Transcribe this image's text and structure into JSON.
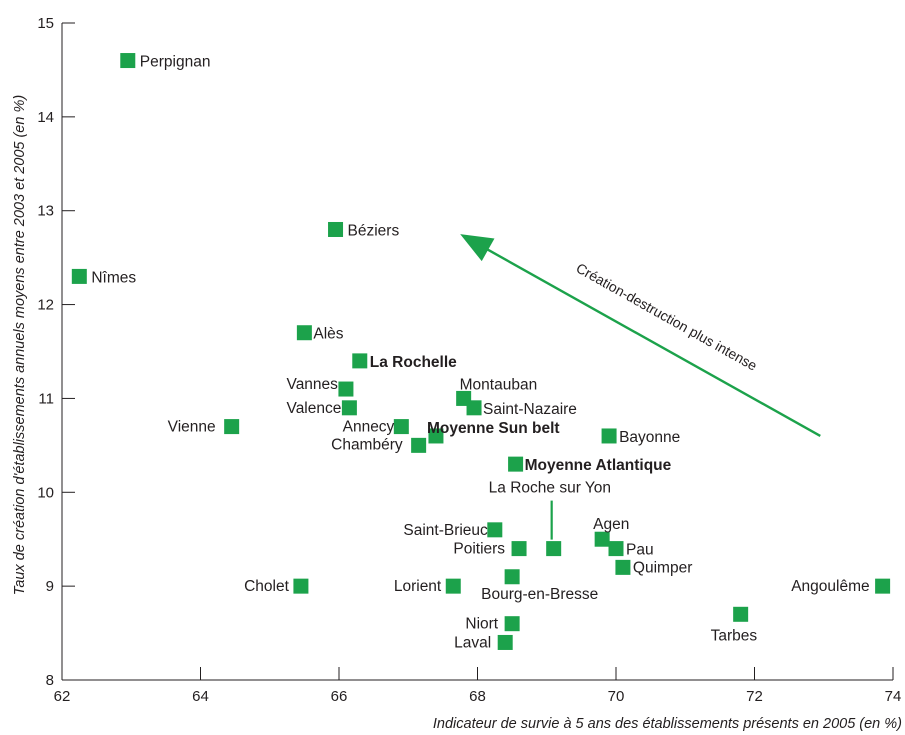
{
  "chart_data": {
    "type": "scatter",
    "xlabel": "Indicateur de survie à 5 ans des établissements présents en 2005 (en %)",
    "ylabel": "Taux de création d'établissements  annuels moyens entre 2003 et 2005 (en %)",
    "xlim": [
      62,
      74
    ],
    "ylim": [
      8,
      15
    ],
    "xticks": [
      "62",
      "64",
      "66",
      "68",
      "70",
      "72",
      "74"
    ],
    "yticks": [
      "8",
      "9",
      "10",
      "11",
      "12",
      "13",
      "14",
      "15"
    ],
    "grid": false,
    "marker_color": "#1ca24b",
    "points": [
      {
        "label": "Perpignan",
        "x": 62.95,
        "y": 14.6,
        "bold": false
      },
      {
        "label": "Béziers",
        "x": 65.95,
        "y": 12.8,
        "bold": false
      },
      {
        "label": "Nîmes",
        "x": 62.25,
        "y": 12.3,
        "bold": false
      },
      {
        "label": "Alès",
        "x": 65.5,
        "y": 11.7,
        "bold": false
      },
      {
        "label": "La Rochelle",
        "x": 66.3,
        "y": 11.4,
        "bold": true
      },
      {
        "label": "Vannes",
        "x": 66.1,
        "y": 11.1,
        "bold": false
      },
      {
        "label": "Valence",
        "x": 66.15,
        "y": 10.9,
        "bold": false
      },
      {
        "label": "Vienne",
        "x": 64.45,
        "y": 10.7,
        "bold": false
      },
      {
        "label": "Annecy",
        "x": 66.9,
        "y": 10.7,
        "bold": false
      },
      {
        "label": "Moyenne Sun belt",
        "x": 67.4,
        "y": 10.6,
        "bold": true
      },
      {
        "label": "Chambéry",
        "x": 67.15,
        "y": 10.5,
        "bold": false
      },
      {
        "label": "Montauban",
        "x": 67.8,
        "y": 11.0,
        "bold": false
      },
      {
        "label": "Saint-Nazaire",
        "x": 67.95,
        "y": 10.9,
        "bold": false
      },
      {
        "label": "Bayonne",
        "x": 69.9,
        "y": 10.6,
        "bold": false
      },
      {
        "label": "Moyenne Atlantique",
        "x": 68.55,
        "y": 10.3,
        "bold": true
      },
      {
        "label": "La Roche sur Yon",
        "x": 69.1,
        "y": 9.4,
        "bold": false
      },
      {
        "label": "Saint-Brieuc",
        "x": 68.25,
        "y": 9.6,
        "bold": false
      },
      {
        "label": "Poitiers",
        "x": 68.6,
        "y": 9.4,
        "bold": false
      },
      {
        "label": "Agen",
        "x": 69.8,
        "y": 9.5,
        "bold": false
      },
      {
        "label": "Pau",
        "x": 70.0,
        "y": 9.4,
        "bold": false
      },
      {
        "label": "Quimper",
        "x": 70.1,
        "y": 9.2,
        "bold": false
      },
      {
        "label": "Cholet",
        "x": 65.45,
        "y": 9.0,
        "bold": false
      },
      {
        "label": "Lorient",
        "x": 67.65,
        "y": 9.0,
        "bold": false
      },
      {
        "label": "Bourg-en-Bresse",
        "x": 68.5,
        "y": 9.1,
        "bold": false
      },
      {
        "label": "Angoulême",
        "x": 73.85,
        "y": 9.0,
        "bold": false
      },
      {
        "label": "Tarbes",
        "x": 71.8,
        "y": 8.7,
        "bold": false
      },
      {
        "label": "Niort",
        "x": 68.5,
        "y": 8.6,
        "bold": false
      },
      {
        "label": "Laval",
        "x": 68.4,
        "y": 8.4,
        "bold": false
      }
    ],
    "annotations": [
      {
        "text": "Création-destruction plus intense",
        "arrow_from": [
          72.95,
          10.6
        ],
        "arrow_to": [
          67.75,
          12.75
        ]
      }
    ]
  }
}
